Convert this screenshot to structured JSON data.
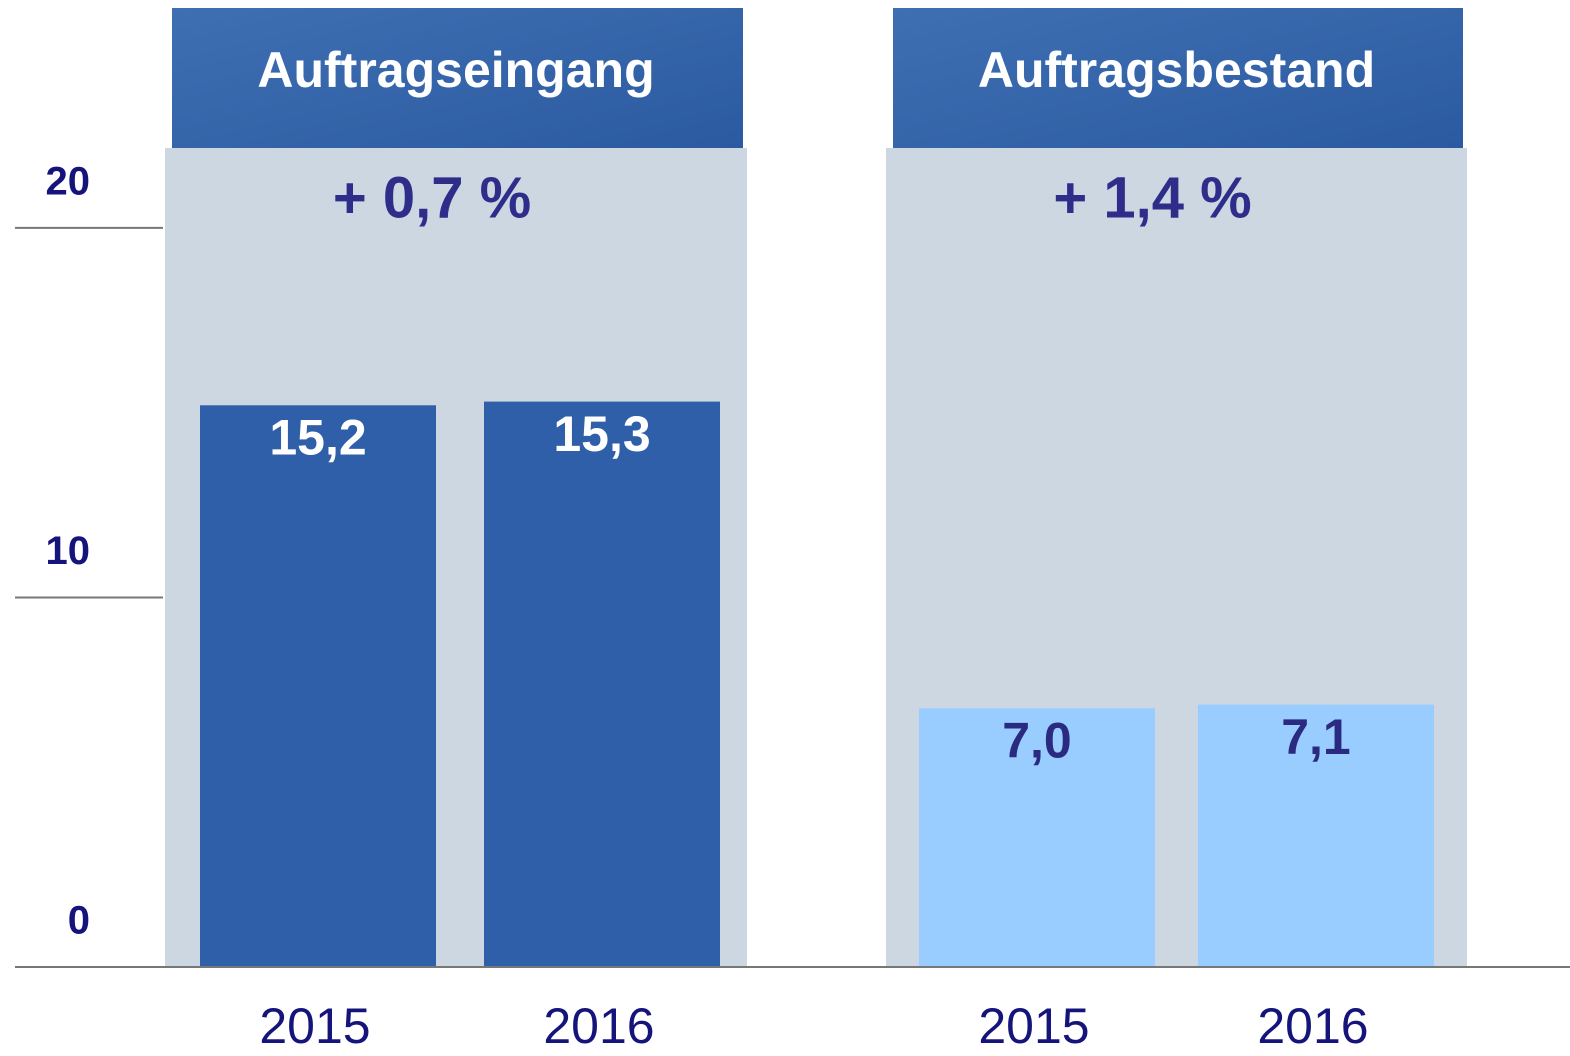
{
  "chart_data": {
    "type": "bar",
    "ylim": [
      0,
      22
    ],
    "yticks": [
      0,
      10,
      20
    ],
    "panels": [
      {
        "title": "Auftragseingang",
        "annotation": "+ 0,7 %",
        "categories": [
          "2015",
          "2016"
        ],
        "values": [
          15.2,
          15.3
        ],
        "value_labels": [
          "15,2",
          "15,3"
        ],
        "color": "#2f5fa8",
        "label_color": "#ffffff"
      },
      {
        "title": "Auftragsbestand",
        "annotation": "+ 1,4 %",
        "categories": [
          "2015",
          "2016"
        ],
        "values": [
          7.0,
          7.1
        ],
        "value_labels": [
          "7,0",
          "7,1"
        ],
        "color": "#99ccff",
        "label_color": "#2a2a80"
      }
    ]
  }
}
